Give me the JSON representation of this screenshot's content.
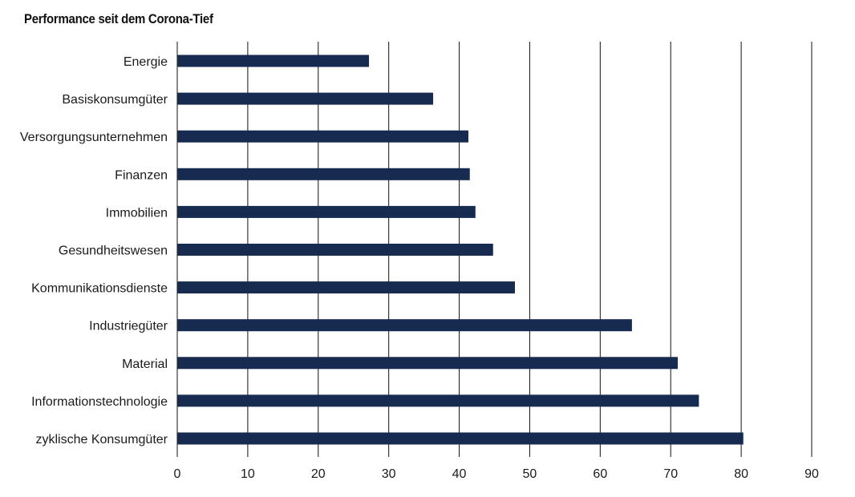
{
  "chart_data": {
    "type": "bar",
    "orientation": "horizontal",
    "title": "Performance seit dem Corona-Tief",
    "xlabel": "",
    "ylabel": "",
    "xlim": [
      0,
      90
    ],
    "xticks": [
      0,
      10,
      20,
      30,
      40,
      50,
      60,
      70,
      80,
      90
    ],
    "grid": "vertical",
    "categories": [
      "Energie",
      "Basiskonsumgüter",
      "Versorgungsunternehmen",
      "Finanzen",
      "Immobilien",
      "Gesundheitswesen",
      "Kommunikationsdienste",
      "Industriegüter",
      "Material",
      "Informationstechnologie",
      "zyklische Konsumgüter"
    ],
    "values": [
      27.2,
      36.3,
      41.3,
      41.5,
      42.3,
      44.8,
      47.9,
      64.5,
      71.0,
      74.0,
      80.3
    ],
    "colors": {
      "bar": "#172a4f",
      "grid": "#111111",
      "text": "#1a1a1a"
    }
  }
}
